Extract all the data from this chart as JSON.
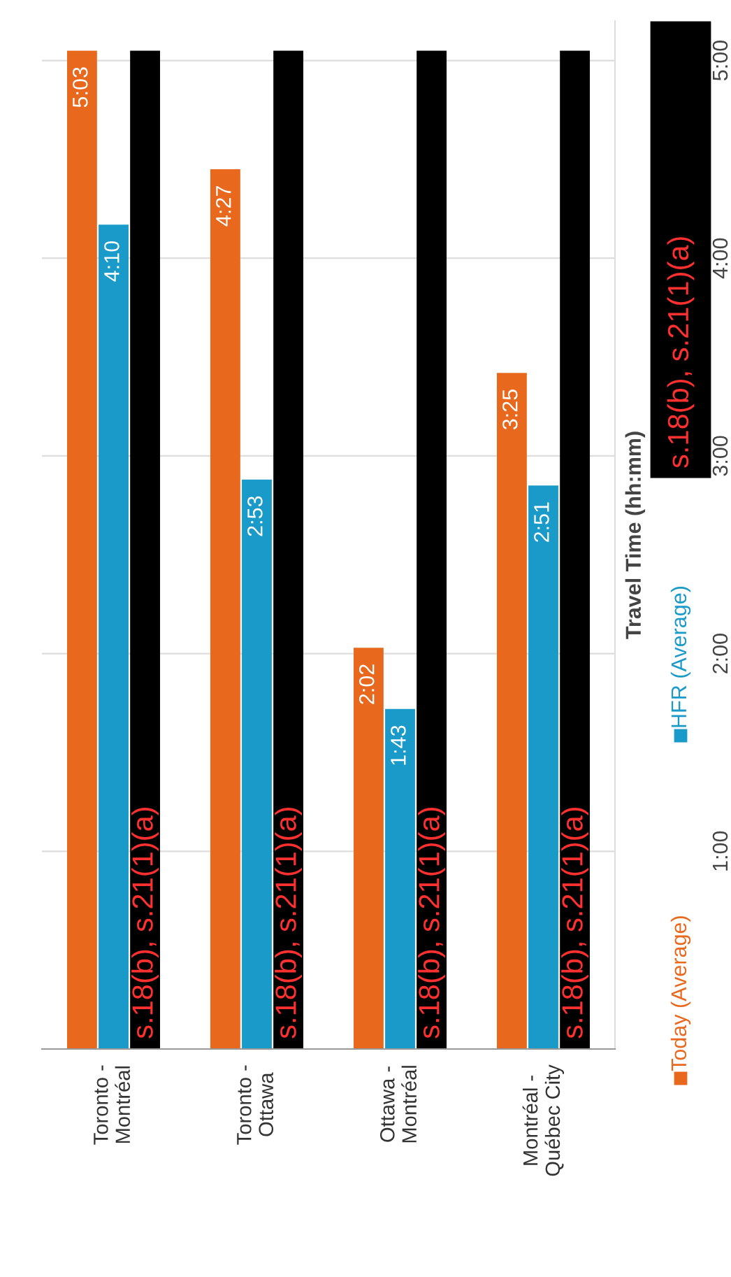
{
  "chart_data": {
    "type": "bar",
    "ylabel": "Travel Time (hh:mm)",
    "categories": [
      "Toronto -\nMontréal",
      "Toronto -\nOttawa",
      "Ottawa -\nMontréal",
      "Montréal -\nQuébec City"
    ],
    "series": [
      {
        "name": "Today (Average)",
        "color": "#e8681e",
        "values": [
          5.05,
          4.45,
          2.03,
          3.42
        ],
        "value_labels": [
          "5:03",
          "4:27",
          "2:02",
          "3:25"
        ]
      },
      {
        "name": "HFR (Average)",
        "color": "#1a9ac8",
        "values": [
          4.17,
          2.88,
          1.72,
          2.85
        ],
        "value_labels": [
          "4:10",
          "2:53",
          "1:43",
          "2:51"
        ]
      },
      {
        "name": "s.18(b), s.21(1)(a)",
        "color": "#000000",
        "values": [
          5.05,
          5.05,
          5.05,
          5.05
        ]
      }
    ],
    "annotations": [
      "s.18(b), s.21(1)(a)",
      "s.18(b), s.21(1)(a)",
      "s.18(b), s.21(1)(a)",
      "s.18(b), s.21(1)(a)"
    ],
    "ylim": [
      0,
      5.2
    ],
    "yticks": [
      {
        "value": 1,
        "label": "1:00"
      },
      {
        "value": 2,
        "label": "2:00"
      },
      {
        "value": 3,
        "label": "3:00"
      },
      {
        "value": 4,
        "label": "4:00"
      },
      {
        "value": 5,
        "label": "5:00"
      }
    ],
    "grid": "y",
    "legend": "bottom"
  }
}
